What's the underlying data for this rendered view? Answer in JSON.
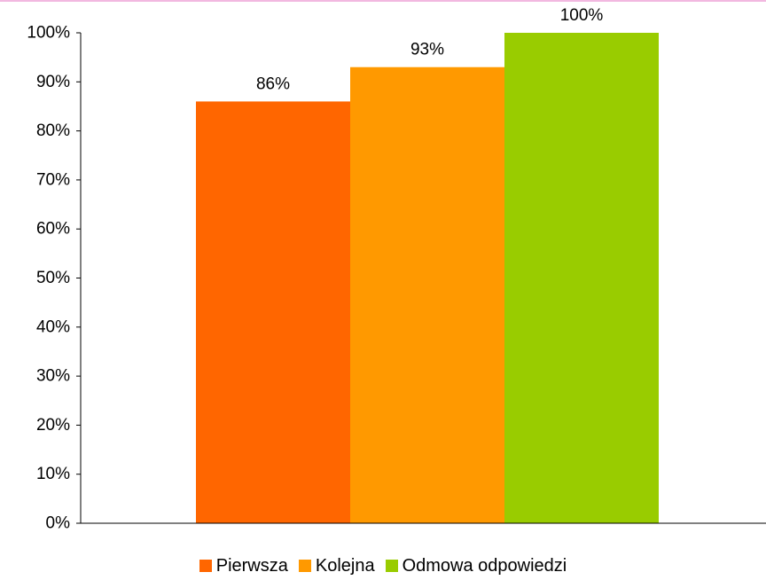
{
  "chart_data": {
    "type": "bar",
    "title": "",
    "xlabel": "",
    "ylabel": "",
    "ylim": [
      0,
      100
    ],
    "y_ticks": [
      "0%",
      "10%",
      "20%",
      "30%",
      "40%",
      "50%",
      "60%",
      "70%",
      "80%",
      "90%",
      "100%"
    ],
    "grid": false,
    "legend_position": "bottom",
    "series": [
      {
        "name": "Pierwsza",
        "value": 86,
        "label": "86%",
        "color": "#ff6600"
      },
      {
        "name": "Kolejna",
        "value": 93,
        "label": "93%",
        "color": "#ff9900"
      },
      {
        "name": "Odmowa odpowiedzi",
        "value": 100,
        "label": "100%",
        "color": "#99cc00"
      }
    ]
  }
}
